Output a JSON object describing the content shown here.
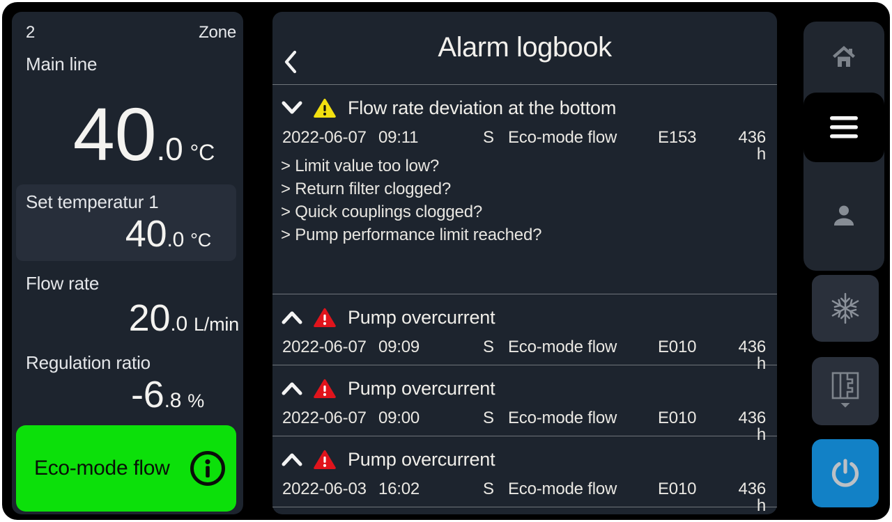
{
  "colors": {
    "accent_green": "#0ce00a",
    "warning_yellow": "#f2e010",
    "error_red": "#e0141c",
    "power_blue": "#1281c6"
  },
  "zone_panel": {
    "zone_number": "2",
    "zone_label": "Zone",
    "main_line": {
      "label": "Main line",
      "value": "40",
      "decimal": ".0",
      "unit": "°C"
    },
    "set_temperature": {
      "label": "Set temperatur 1",
      "value": "40",
      "decimal": ".0",
      "unit": "°C"
    },
    "flow_rate": {
      "label": "Flow rate",
      "value": "20",
      "decimal": ".0",
      "unit": "L/min"
    },
    "regulation_ratio": {
      "label": "Regulation ratio",
      "value": "-6",
      "decimal": ".8",
      "unit": "%"
    },
    "eco_button_label": "Eco-mode flow"
  },
  "alarm_panel": {
    "title": "Alarm logbook",
    "entries": [
      {
        "severity": "warning",
        "expanded": true,
        "title": "Flow rate deviation at the bottom",
        "date": "2022-06-07",
        "time": "09:11",
        "flag": "S",
        "mode": "Eco-mode flow",
        "code": "E153",
        "runtime": "436 h",
        "hints": [
          "> Limit value too low?",
          "> Return filter clogged?",
          "> Quick couplings clogged?",
          "> Pump performance limit reached?"
        ]
      },
      {
        "severity": "error",
        "expanded": false,
        "title": "Pump overcurrent",
        "date": "2022-06-07",
        "time": "09:09",
        "flag": "S",
        "mode": "Eco-mode flow",
        "code": "E010",
        "runtime": "436 h",
        "hints": []
      },
      {
        "severity": "error",
        "expanded": false,
        "title": "Pump overcurrent",
        "date": "2022-06-07",
        "time": "09:00",
        "flag": "S",
        "mode": "Eco-mode flow",
        "code": "E010",
        "runtime": "436 h",
        "hints": []
      },
      {
        "severity": "error",
        "expanded": false,
        "title": "Pump overcurrent",
        "date": "2022-06-03",
        "time": "16:02",
        "flag": "S",
        "mode": "Eco-mode flow",
        "code": "E010",
        "runtime": "436 h",
        "hints": []
      }
    ]
  },
  "sidebar": {
    "items": [
      {
        "icon": "home-icon",
        "active": false
      },
      {
        "icon": "menu-icon",
        "active": true
      },
      {
        "icon": "user-icon",
        "active": false
      },
      {
        "icon": "snowflake-icon",
        "active": false
      },
      {
        "icon": "mold-icon",
        "active": false
      },
      {
        "icon": "power-icon",
        "active": false
      }
    ]
  }
}
